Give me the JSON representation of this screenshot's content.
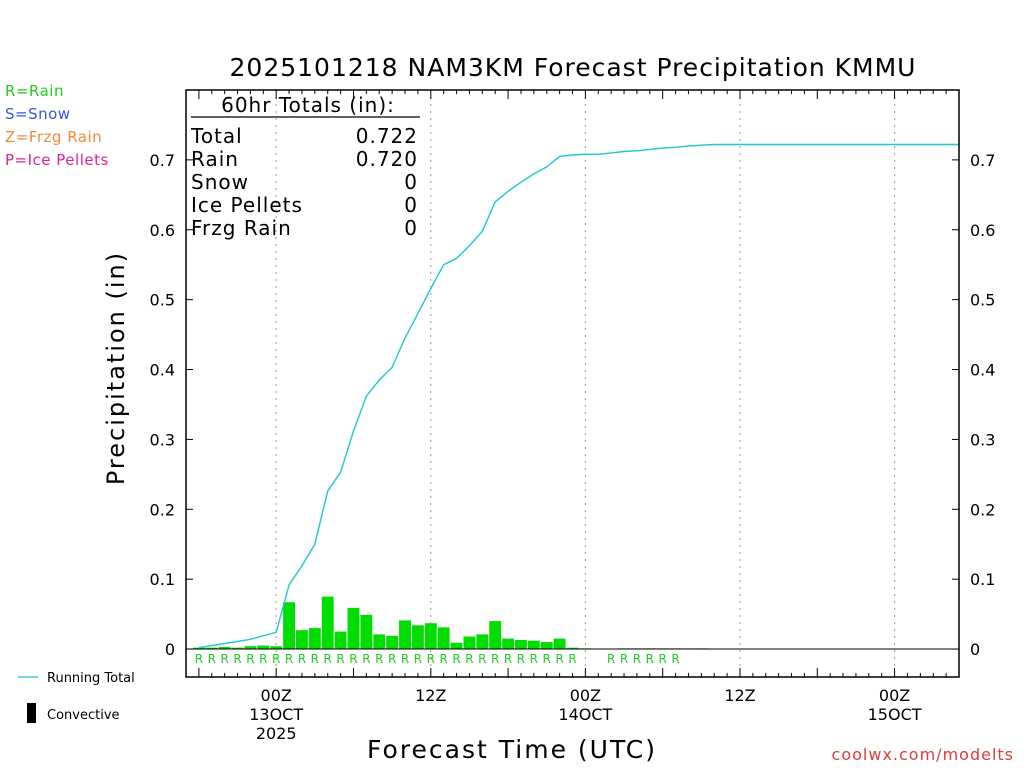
{
  "title": "2025101218 NAM3KM Forecast Precipitation KMMU",
  "type_legend": [
    {
      "label": "R=Rain",
      "color": "#22cc22"
    },
    {
      "label": "S=Snow",
      "color": "#3355ee"
    },
    {
      "label": "Z=Frzg Rain",
      "color": "#f08a3a"
    },
    {
      "label": "P=Ice Pellets",
      "color": "#e0209a"
    }
  ],
  "line_legend": {
    "running_total": "Running Total",
    "convective": "Convective"
  },
  "watermark": "coolwx.com/modelts",
  "totals": {
    "header": "60hr Totals (in):",
    "rows": [
      {
        "label": "Total",
        "value": "0.722"
      },
      {
        "label": "Rain",
        "value": "0.720"
      },
      {
        "label": "Snow",
        "value": "0"
      },
      {
        "label": "Ice Pellets",
        "value": "0"
      },
      {
        "label": "Frzg Rain",
        "value": "0"
      }
    ]
  },
  "chart_data": {
    "type": "bar",
    "title": "2025101218 NAM3KM Forecast Precipitation KMMU",
    "xlabel": "Forecast Time (UTC)",
    "ylabel": "Precipitation (in)",
    "xlim": [
      -1.0,
      59.0
    ],
    "ylim": [
      -0.04,
      0.8
    ],
    "yticks": [
      0,
      0.1,
      0.2,
      0.3,
      0.4,
      0.5,
      0.6,
      0.7
    ],
    "ytick_labels": [
      "0",
      "0.1",
      "0.2",
      "0.3",
      "0.4",
      "0.5",
      "0.6",
      "0.7"
    ],
    "grid": "vertical dotted at 6-hourly major ticks",
    "xticks": [
      {
        "x": 6,
        "lines": [
          "00Z",
          "13OCT",
          "2025"
        ]
      },
      {
        "x": 18,
        "lines": [
          "12Z"
        ]
      },
      {
        "x": 30,
        "lines": [
          "00Z",
          "14OCT"
        ]
      },
      {
        "x": 42,
        "lines": [
          "12Z"
        ]
      },
      {
        "x": 54,
        "lines": [
          "00Z",
          "15OCT"
        ]
      }
    ],
    "hourly_precip": {
      "name": "Hourly Precip",
      "color": "#00dd00",
      "x": [
        0,
        1,
        2,
        3,
        4,
        5,
        6,
        7,
        8,
        9,
        10,
        11,
        12,
        13,
        14,
        15,
        16,
        17,
        18,
        19,
        20,
        21,
        22,
        23,
        24,
        25,
        26,
        27,
        28,
        29,
        30,
        31,
        32,
        33,
        34,
        35,
        36,
        37,
        38,
        39,
        40,
        41,
        42,
        43,
        44,
        45,
        46,
        47,
        48,
        49,
        50,
        51,
        52,
        53,
        54,
        55,
        56,
        57,
        58,
        59
      ],
      "values": [
        0.002,
        0.002,
        0.003,
        0.002,
        0.004,
        0.005,
        0.004,
        0.067,
        0.027,
        0.03,
        0.075,
        0.025,
        0.059,
        0.049,
        0.021,
        0.019,
        0.041,
        0.034,
        0.037,
        0.031,
        0.009,
        0.018,
        0.021,
        0.04,
        0.015,
        0.013,
        0.012,
        0.01,
        0.015,
        0.002,
        0.001,
        0,
        0,
        0.001,
        0.001,
        0.001,
        0.001,
        0.001,
        0.001,
        0.001,
        0,
        0,
        0,
        0,
        0,
        0,
        0,
        0,
        0,
        0,
        0,
        0,
        0,
        0,
        0,
        0,
        0,
        0,
        0,
        0
      ]
    },
    "running_total": {
      "name": "Running Total",
      "color": "#1ec8d0",
      "x": [
        0,
        1,
        2,
        3,
        4,
        5,
        6,
        7,
        8,
        9,
        10,
        11,
        12,
        13,
        14,
        15,
        16,
        17,
        18,
        19,
        20,
        21,
        22,
        23,
        24,
        25,
        26,
        27,
        28,
        29,
        30,
        31,
        32,
        33,
        34,
        35,
        36,
        37,
        38,
        39,
        40,
        41,
        42,
        43,
        44,
        45,
        46,
        47,
        48,
        49,
        50,
        51,
        52,
        53,
        54,
        55,
        56,
        57,
        58,
        59
      ],
      "values": [
        0.002,
        0.005,
        0.008,
        0.011,
        0.014,
        0.019,
        0.024,
        0.092,
        0.119,
        0.15,
        0.226,
        0.253,
        0.312,
        0.362,
        0.385,
        0.403,
        0.445,
        0.48,
        0.516,
        0.55,
        0.559,
        0.577,
        0.598,
        0.64,
        0.655,
        0.668,
        0.68,
        0.69,
        0.705,
        0.707,
        0.708,
        0.708,
        0.71,
        0.712,
        0.713,
        0.715,
        0.717,
        0.718,
        0.72,
        0.721,
        0.722,
        0.722,
        0.722,
        0.722,
        0.722,
        0.722,
        0.722,
        0.722,
        0.722,
        0.722,
        0.722,
        0.722,
        0.722,
        0.722,
        0.722,
        0.722,
        0.722,
        0.722,
        0.722,
        0.722
      ]
    },
    "precip_type_x": [
      0,
      1,
      2,
      3,
      4,
      5,
      6,
      7,
      8,
      9,
      10,
      11,
      12,
      13,
      14,
      15,
      16,
      17,
      18,
      19,
      20,
      21,
      22,
      23,
      24,
      25,
      26,
      27,
      28,
      29,
      32,
      33,
      34,
      35,
      36,
      37
    ],
    "precip_type_symbol": "R"
  }
}
